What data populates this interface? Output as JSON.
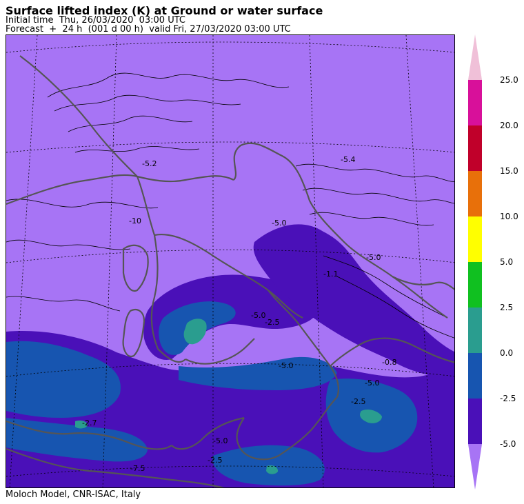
{
  "header": {
    "title": "Surface lifted index (K) at Ground or water surface",
    "initial_time": "Initial time  Thu, 26/03/2020  03:00 UTC",
    "forecast": "Forecast  +  24 h  (001 d 00 h)  valid Fri, 27/03/2020 03:00 UTC"
  },
  "footer": {
    "credit": "Moloch Model, CNR-ISAC, Italy"
  },
  "map": {
    "contour_labels": [
      "-5.2",
      "-10",
      "-5.4",
      "-5.0",
      "-5.0",
      "-5.0",
      "-5.0",
      "-2.5",
      "-5.0",
      "-2.7",
      "-0.8",
      "-2.5",
      "-5.0",
      "-1.1",
      "-2.5",
      "-7.5"
    ]
  },
  "legend": {
    "ticks": [
      "25.0",
      "20.0",
      "15.0",
      "10.0",
      "5.0",
      "2.5",
      "0.0",
      "-2.5",
      "-5.0"
    ],
    "colors": {
      "above_25": "#f0c0d8",
      "20_to_25": "#d8109a",
      "15_to_20": "#c0002a",
      "10_to_15": "#e8700a",
      "5_to_10": "#ffff00",
      "2.5_to_5": "#10c020",
      "0_to_2.5": "#2a9d8f",
      "-2.5_to_0": "#1755b0",
      "-5_to_-2.5": "#4a10b8",
      "below_-5": "#a774f5"
    }
  }
}
